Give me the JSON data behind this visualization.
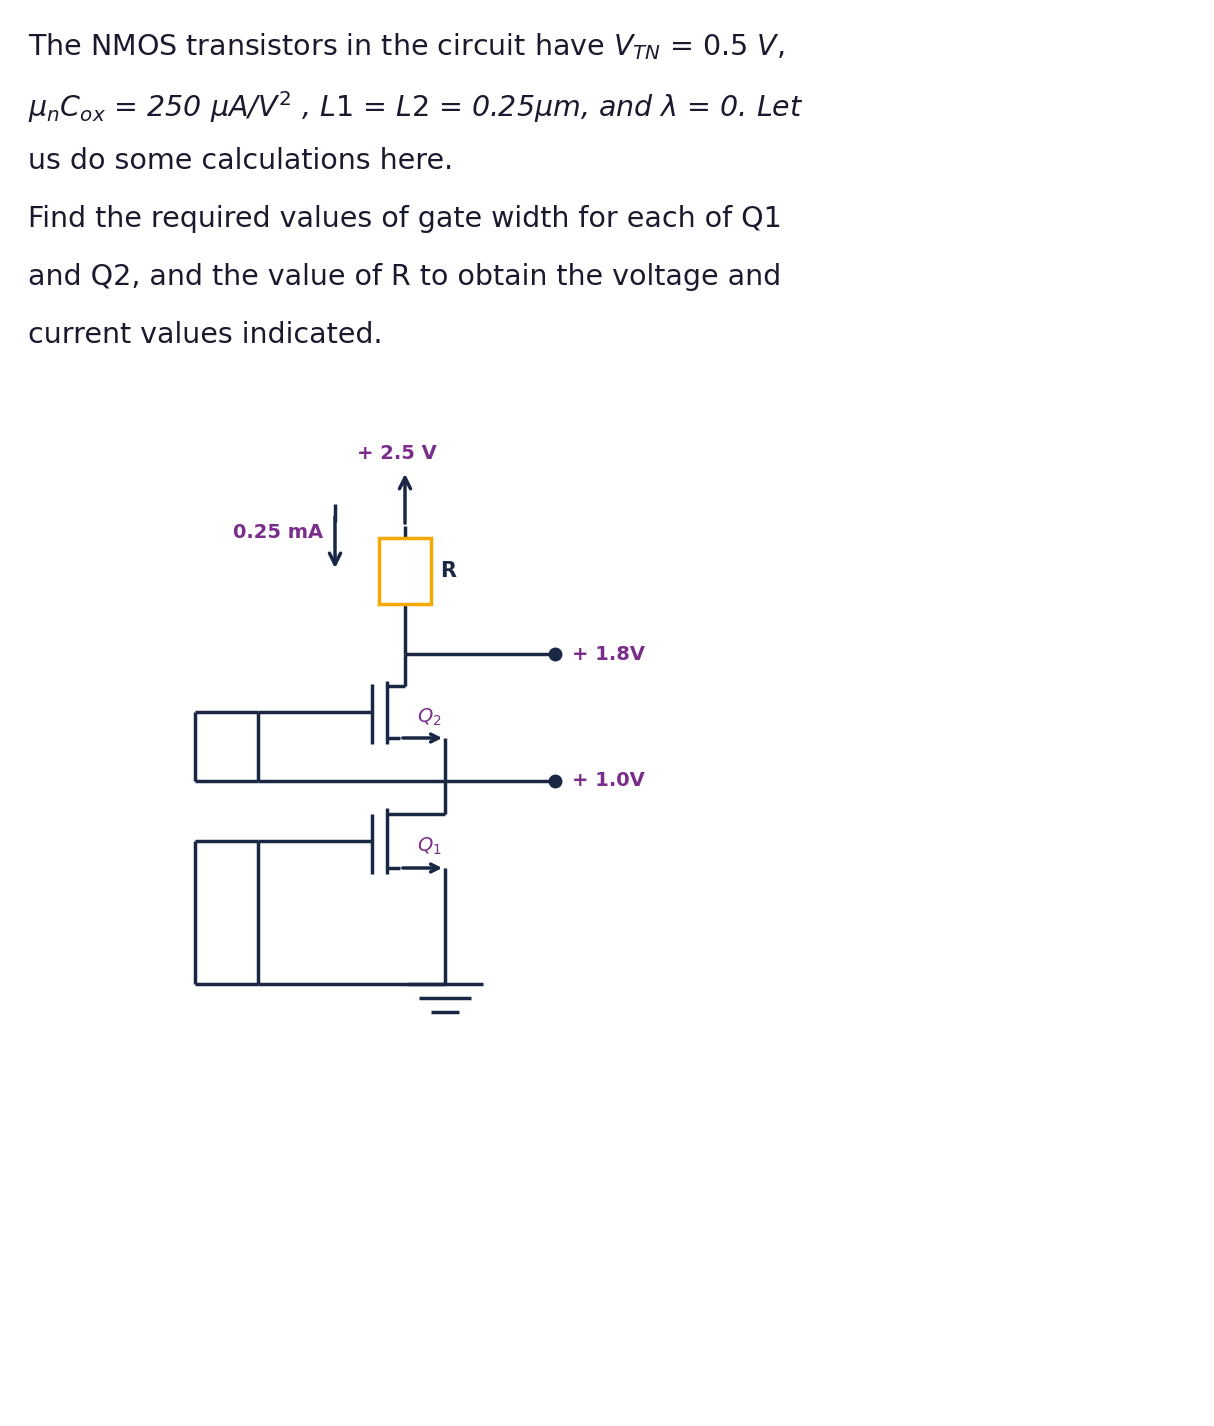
{
  "bg_color": "#ffffff",
  "text_color": "#1a1a2e",
  "purple_color": "#7b2d8b",
  "circuit_color": "#1a2744",
  "resistor_color": "#f5a800",
  "fig_width": 12.14,
  "fig_height": 14.26,
  "vdd_label": "+ 2.5 V",
  "current_label": "0.25 mA",
  "R_label": "R",
  "v18_label": "+ 1.8V",
  "v10_label": "+ 1.0V",
  "Q2_label": "Q",
  "Q1_label": "Q"
}
